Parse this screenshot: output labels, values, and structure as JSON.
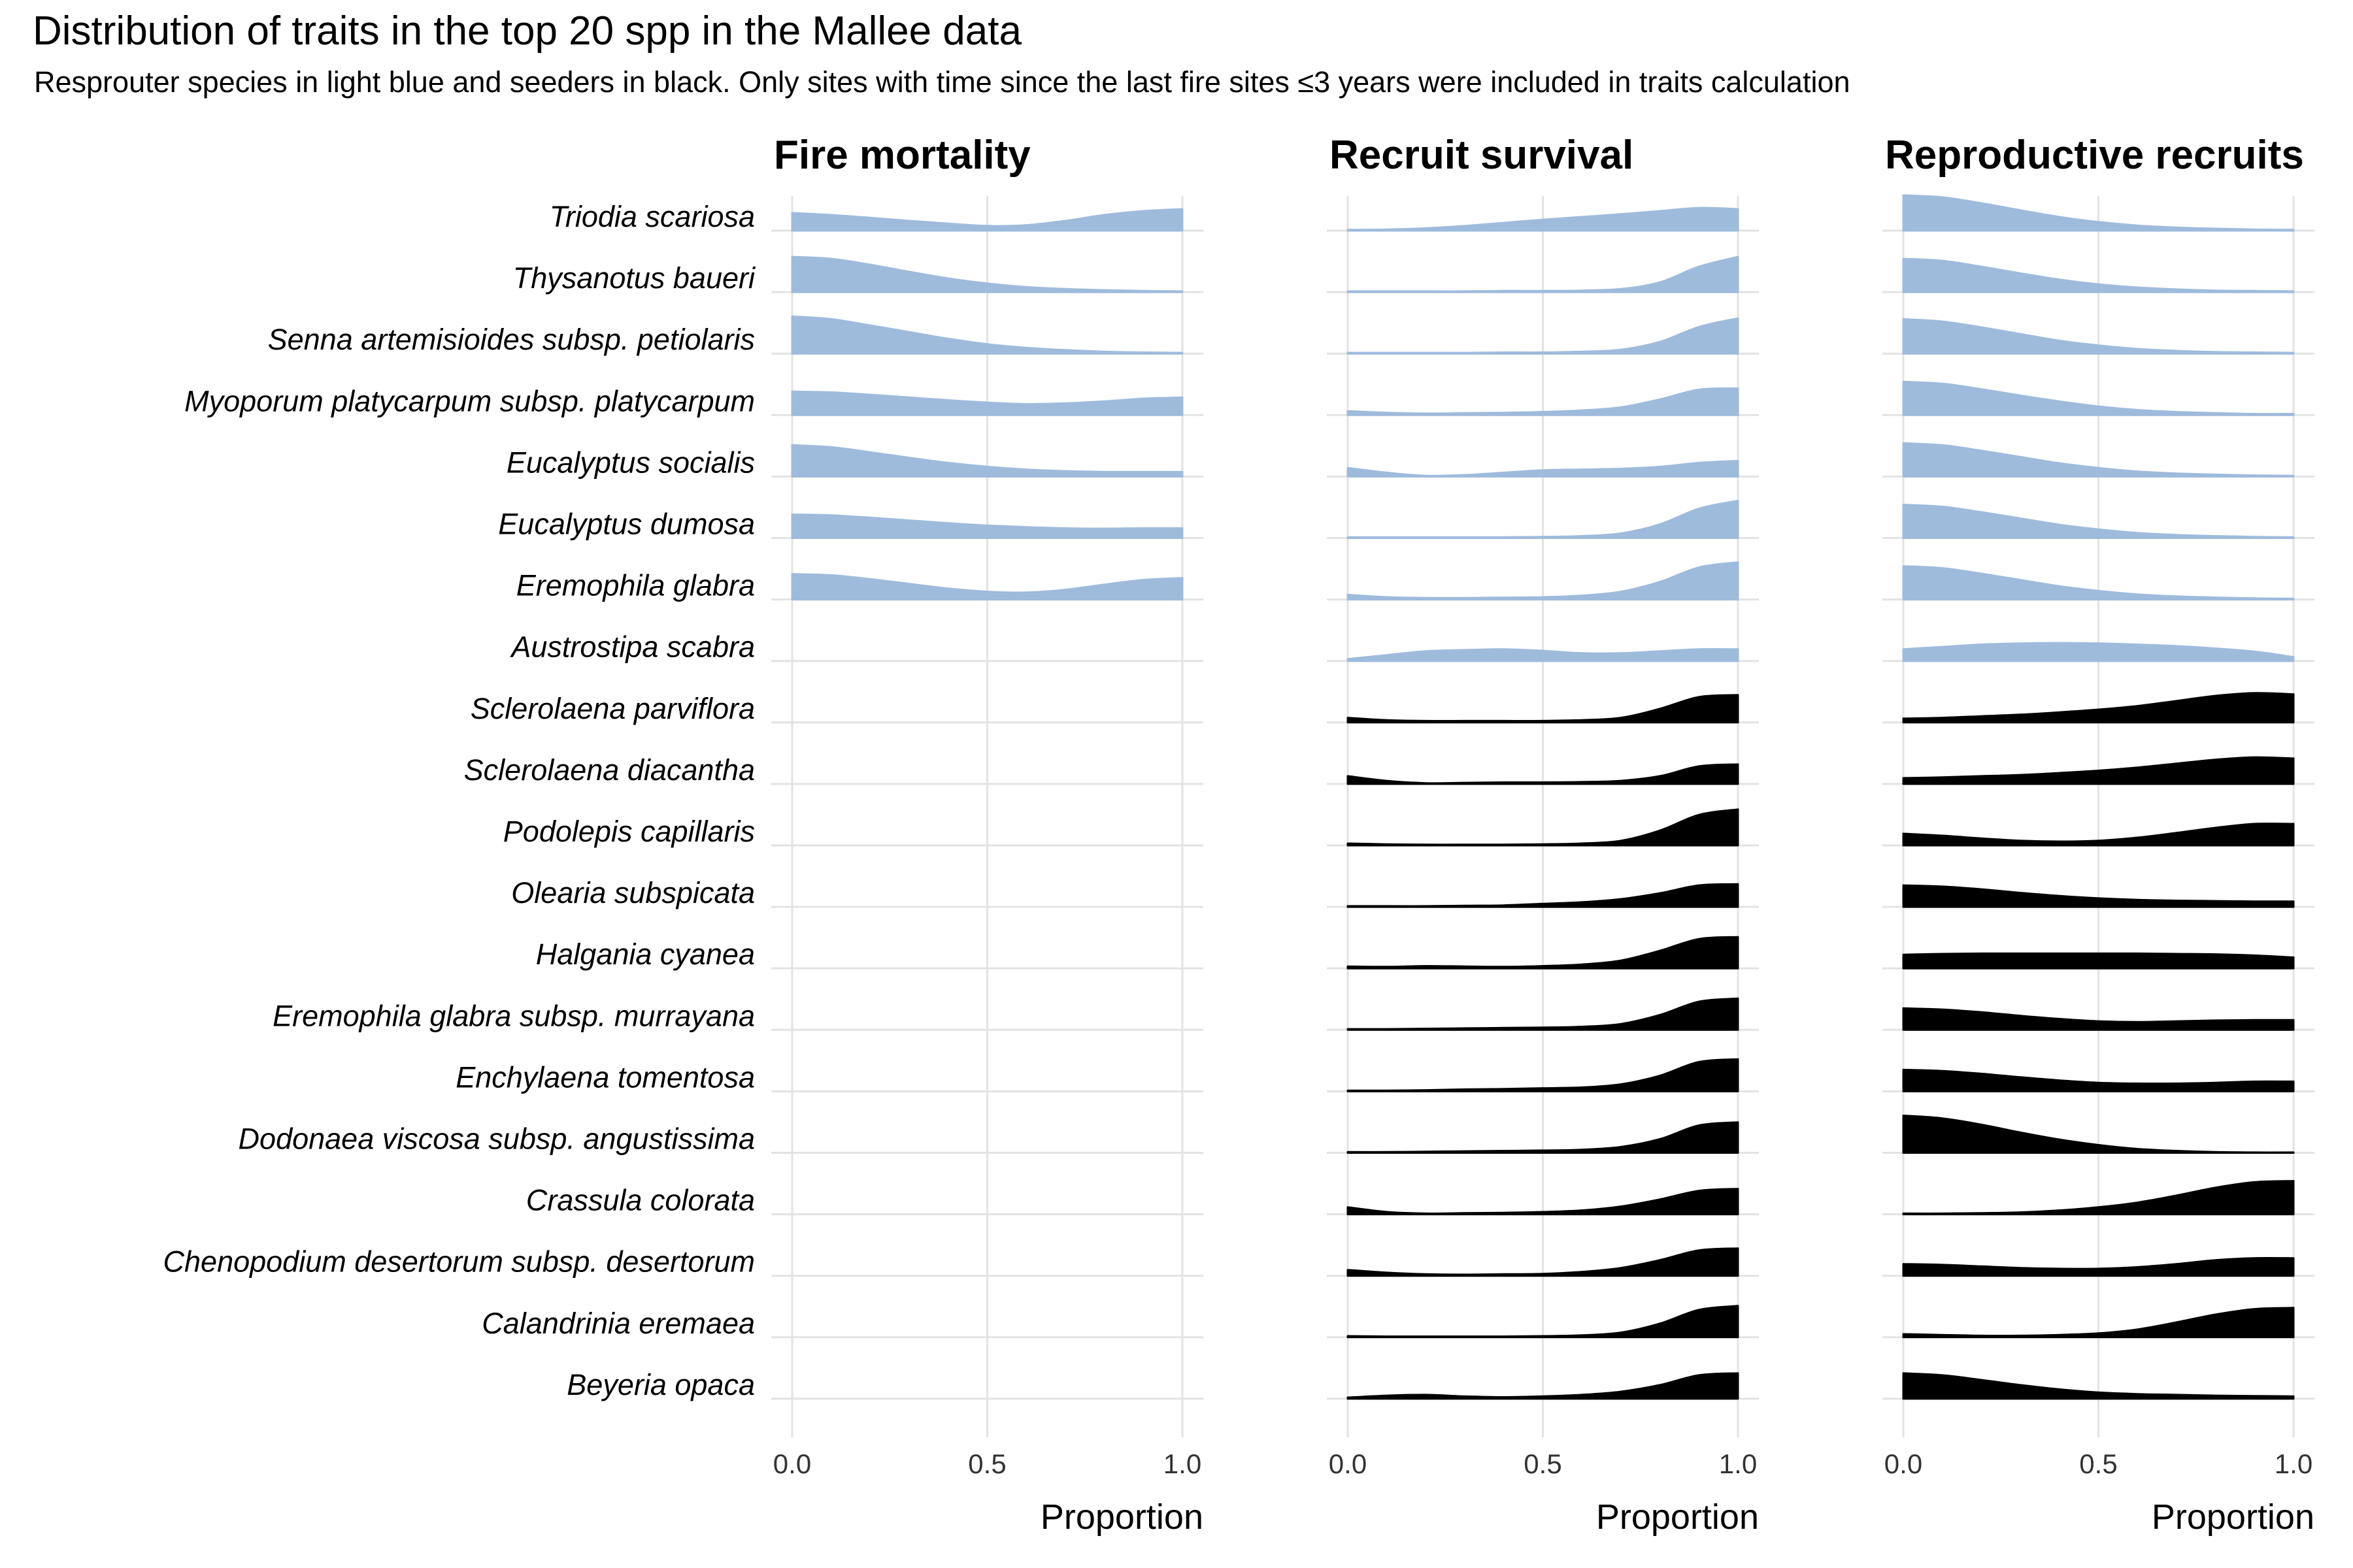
{
  "title": "Distribution of traits in the top 20 spp in the Mallee data",
  "subtitle": "Resprouter species in light blue and seeders in black. Only sites with time since the last fire sites ≤3 years were included in traits calculation",
  "colors": {
    "resprouter": "#9ebbdc",
    "seeder": "#000000",
    "grid": "#e3e3e3"
  },
  "chart_data": {
    "type": "ridgeline",
    "species": [
      {
        "name": "Triodia scariosa",
        "group": "resprouter"
      },
      {
        "name": "Thysanotus baueri",
        "group": "resprouter"
      },
      {
        "name": "Senna artemisioides subsp. petiolaris",
        "group": "resprouter"
      },
      {
        "name": "Myoporum platycarpum subsp. platycarpum",
        "group": "resprouter"
      },
      {
        "name": "Eucalyptus socialis",
        "group": "resprouter"
      },
      {
        "name": "Eucalyptus dumosa",
        "group": "resprouter"
      },
      {
        "name": "Eremophila glabra",
        "group": "resprouter"
      },
      {
        "name": "Austrostipa scabra",
        "group": "resprouter"
      },
      {
        "name": "Sclerolaena parviflora",
        "group": "seeder"
      },
      {
        "name": "Sclerolaena diacantha",
        "group": "seeder"
      },
      {
        "name": "Podolepis capillaris",
        "group": "seeder"
      },
      {
        "name": "Olearia subspicata",
        "group": "seeder"
      },
      {
        "name": "Halgania cyanea",
        "group": "seeder"
      },
      {
        "name": "Eremophila glabra subsp. murrayana",
        "group": "seeder"
      },
      {
        "name": "Enchylaena tomentosa",
        "group": "seeder"
      },
      {
        "name": "Dodonaea viscosa subsp. angustissima",
        "group": "seeder"
      },
      {
        "name": "Crassula colorata",
        "group": "seeder"
      },
      {
        "name": "Chenopodium desertorum subsp. desertorum",
        "group": "seeder"
      },
      {
        "name": "Calandrinia eremaea",
        "group": "seeder"
      },
      {
        "name": "Beyeria opaca",
        "group": "seeder"
      }
    ],
    "x_ticks": [
      0.0,
      0.5,
      1.0
    ],
    "x_tick_labels": [
      "0.0",
      "0.5",
      "1.0"
    ],
    "xlim": [
      0,
      1
    ],
    "density_x": [
      0,
      0.1,
      0.2,
      0.3,
      0.4,
      0.5,
      0.6,
      0.7,
      0.8,
      0.9,
      1.0
    ],
    "panels": [
      {
        "title": "Fire mortality",
        "xlabel": "Proportion",
        "ridges": [
          [
            0.45,
            0.4,
            0.33,
            0.25,
            0.18,
            0.12,
            0.14,
            0.25,
            0.4,
            0.5,
            0.55
          ],
          [
            0.9,
            0.85,
            0.7,
            0.52,
            0.35,
            0.22,
            0.13,
            0.08,
            0.05,
            0.03,
            0.02
          ],
          [
            0.95,
            0.88,
            0.72,
            0.55,
            0.38,
            0.24,
            0.15,
            0.09,
            0.05,
            0.03,
            0.02
          ],
          [
            0.6,
            0.58,
            0.52,
            0.45,
            0.38,
            0.32,
            0.28,
            0.3,
            0.35,
            0.42,
            0.45
          ],
          [
            0.8,
            0.75,
            0.62,
            0.48,
            0.35,
            0.25,
            0.18,
            0.14,
            0.12,
            0.12,
            0.12
          ],
          [
            0.6,
            0.58,
            0.52,
            0.45,
            0.38,
            0.32,
            0.28,
            0.25,
            0.24,
            0.25,
            0.25
          ],
          [
            0.65,
            0.62,
            0.52,
            0.4,
            0.28,
            0.2,
            0.18,
            0.25,
            0.38,
            0.5,
            0.55
          ],
          null,
          null,
          null,
          null,
          null,
          null,
          null,
          null,
          null,
          null,
          null,
          null,
          null
        ]
      },
      {
        "title": "Recruit survival",
        "xlabel": "Proportion",
        "ridges": [
          [
            0.02,
            0.03,
            0.06,
            0.12,
            0.2,
            0.28,
            0.35,
            0.42,
            0.5,
            0.58,
            0.55
          ],
          [
            0.02,
            0.02,
            0.02,
            0.02,
            0.03,
            0.03,
            0.04,
            0.08,
            0.25,
            0.65,
            0.9
          ],
          [
            0.02,
            0.02,
            0.02,
            0.02,
            0.03,
            0.03,
            0.05,
            0.1,
            0.3,
            0.68,
            0.9
          ],
          [
            0.1,
            0.06,
            0.04,
            0.05,
            0.06,
            0.08,
            0.12,
            0.2,
            0.4,
            0.65,
            0.68
          ],
          [
            0.22,
            0.1,
            0.02,
            0.04,
            0.1,
            0.16,
            0.18,
            0.2,
            0.25,
            0.35,
            0.4
          ],
          [
            0.02,
            0.02,
            0.02,
            0.02,
            0.02,
            0.03,
            0.05,
            0.12,
            0.35,
            0.75,
            0.95
          ],
          [
            0.12,
            0.06,
            0.04,
            0.04,
            0.05,
            0.06,
            0.1,
            0.2,
            0.45,
            0.82,
            0.95
          ],
          [
            0.05,
            0.15,
            0.25,
            0.28,
            0.3,
            0.26,
            0.2,
            0.2,
            0.25,
            0.3,
            0.3
          ],
          [
            0.12,
            0.06,
            0.04,
            0.04,
            0.04,
            0.04,
            0.06,
            0.12,
            0.35,
            0.65,
            0.7
          ],
          [
            0.2,
            0.08,
            0.02,
            0.03,
            0.04,
            0.04,
            0.05,
            0.08,
            0.2,
            0.45,
            0.5
          ],
          [
            0.05,
            0.03,
            0.02,
            0.02,
            0.02,
            0.03,
            0.05,
            0.12,
            0.38,
            0.78,
            0.92
          ],
          [
            0.02,
            0.02,
            0.02,
            0.03,
            0.04,
            0.08,
            0.12,
            0.2,
            0.35,
            0.55,
            0.58
          ],
          [
            0.05,
            0.04,
            0.06,
            0.05,
            0.04,
            0.06,
            0.1,
            0.2,
            0.45,
            0.75,
            0.8
          ],
          [
            0.02,
            0.02,
            0.03,
            0.04,
            0.05,
            0.06,
            0.08,
            0.15,
            0.38,
            0.72,
            0.8
          ],
          [
            0.02,
            0.02,
            0.03,
            0.05,
            0.06,
            0.08,
            0.1,
            0.18,
            0.4,
            0.75,
            0.82
          ],
          [
            0.02,
            0.02,
            0.03,
            0.04,
            0.05,
            0.06,
            0.08,
            0.15,
            0.35,
            0.7,
            0.78
          ],
          [
            0.18,
            0.06,
            0.02,
            0.03,
            0.04,
            0.06,
            0.1,
            0.2,
            0.38,
            0.6,
            0.65
          ],
          [
            0.15,
            0.08,
            0.04,
            0.03,
            0.04,
            0.05,
            0.1,
            0.2,
            0.4,
            0.65,
            0.7
          ],
          [
            0.03,
            0.02,
            0.02,
            0.02,
            0.02,
            0.03,
            0.05,
            0.12,
            0.35,
            0.7,
            0.8
          ],
          [
            0.03,
            0.08,
            0.1,
            0.06,
            0.04,
            0.06,
            0.1,
            0.18,
            0.35,
            0.6,
            0.65
          ]
        ]
      },
      {
        "title": "Reproductive recruits",
        "xlabel": "Proportion",
        "ridges": [
          [
            0.9,
            0.85,
            0.7,
            0.52,
            0.35,
            0.22,
            0.13,
            0.08,
            0.05,
            0.03,
            0.02
          ],
          [
            0.85,
            0.8,
            0.65,
            0.48,
            0.32,
            0.2,
            0.12,
            0.07,
            0.04,
            0.03,
            0.02
          ],
          [
            0.88,
            0.82,
            0.67,
            0.5,
            0.33,
            0.21,
            0.12,
            0.07,
            0.04,
            0.03,
            0.02
          ],
          [
            0.85,
            0.8,
            0.66,
            0.5,
            0.35,
            0.22,
            0.13,
            0.08,
            0.05,
            0.03,
            0.03
          ],
          [
            0.85,
            0.8,
            0.66,
            0.5,
            0.34,
            0.22,
            0.13,
            0.08,
            0.05,
            0.03,
            0.02
          ],
          [
            0.85,
            0.8,
            0.66,
            0.5,
            0.34,
            0.22,
            0.13,
            0.08,
            0.05,
            0.03,
            0.02
          ],
          [
            0.85,
            0.8,
            0.66,
            0.5,
            0.34,
            0.22,
            0.13,
            0.08,
            0.05,
            0.03,
            0.02
          ],
          [
            0.3,
            0.36,
            0.42,
            0.45,
            0.46,
            0.45,
            0.42,
            0.38,
            0.32,
            0.24,
            0.1
          ],
          [
            0.1,
            0.12,
            0.16,
            0.2,
            0.26,
            0.33,
            0.42,
            0.55,
            0.68,
            0.75,
            0.72
          ],
          [
            0.15,
            0.17,
            0.2,
            0.23,
            0.28,
            0.34,
            0.42,
            0.52,
            0.62,
            0.68,
            0.65
          ],
          [
            0.3,
            0.25,
            0.18,
            0.12,
            0.1,
            0.12,
            0.2,
            0.32,
            0.45,
            0.55,
            0.55
          ],
          [
            0.55,
            0.52,
            0.45,
            0.36,
            0.28,
            0.22,
            0.18,
            0.16,
            0.15,
            0.14,
            0.14
          ],
          [
            0.35,
            0.37,
            0.38,
            0.38,
            0.38,
            0.38,
            0.38,
            0.37,
            0.36,
            0.33,
            0.28
          ],
          [
            0.55,
            0.52,
            0.45,
            0.36,
            0.28,
            0.22,
            0.2,
            0.22,
            0.24,
            0.25,
            0.25
          ],
          [
            0.55,
            0.52,
            0.45,
            0.36,
            0.28,
            0.22,
            0.2,
            0.2,
            0.22,
            0.25,
            0.25
          ],
          [
            0.95,
            0.88,
            0.72,
            0.52,
            0.34,
            0.2,
            0.1,
            0.05,
            0.02,
            0.01,
            0.01
          ],
          [
            0.02,
            0.02,
            0.03,
            0.05,
            0.1,
            0.18,
            0.3,
            0.48,
            0.68,
            0.82,
            0.85
          ],
          [
            0.3,
            0.28,
            0.24,
            0.2,
            0.18,
            0.18,
            0.22,
            0.3,
            0.4,
            0.45,
            0.45
          ],
          [
            0.08,
            0.06,
            0.04,
            0.04,
            0.06,
            0.1,
            0.2,
            0.38,
            0.58,
            0.72,
            0.75
          ],
          [
            0.65,
            0.6,
            0.48,
            0.35,
            0.24,
            0.16,
            0.12,
            0.1,
            0.08,
            0.07,
            0.06
          ]
        ]
      }
    ]
  }
}
